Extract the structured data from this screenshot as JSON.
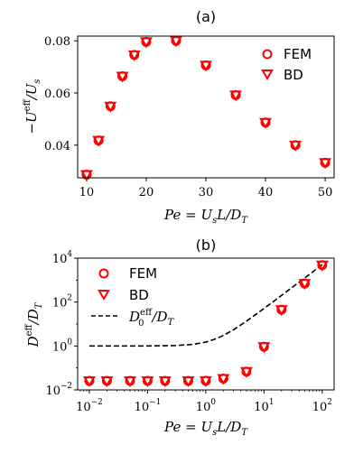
{
  "chart_data": [
    {
      "type": "scatter",
      "title": "(a)",
      "xlabel": "Pe = U_sL/D_T",
      "ylabel": "−U^eff/U_s",
      "xlim": [
        8.5,
        51.5
      ],
      "ylim": [
        0.0275,
        0.0818
      ],
      "xticks": [
        10,
        20,
        30,
        40,
        50
      ],
      "xtick_labels": [
        "10",
        "20",
        "30",
        "40",
        "50"
      ],
      "yticks": [
        0.04,
        0.06,
        0.08
      ],
      "ytick_labels": [
        "0.04",
        "0.06",
        "0.08"
      ],
      "legend_position": "top-right",
      "x": [
        10,
        12,
        14,
        16,
        18,
        20,
        25,
        30,
        35,
        40,
        45,
        50
      ],
      "series": [
        {
          "name": "FEM",
          "marker": "circle",
          "color": "#ff0000",
          "values": [
            0.0287,
            0.0418,
            0.0549,
            0.0664,
            0.0746,
            0.0796,
            0.08,
            0.0706,
            0.0592,
            0.0487,
            0.04,
            0.0333
          ]
        },
        {
          "name": "BD",
          "marker": "triangle-down",
          "color": "#ff0000",
          "values": [
            0.0287,
            0.0418,
            0.0549,
            0.0664,
            0.0746,
            0.0796,
            0.08,
            0.0706,
            0.0592,
            0.0487,
            0.04,
            0.0333
          ]
        }
      ]
    },
    {
      "type": "scatter",
      "title": "(b)",
      "xlabel": "Pe = U_sL/D_T",
      "ylabel": "D^eff/D_T",
      "xscale": "log",
      "yscale": "log",
      "xlim": [
        0.0063,
        160
      ],
      "ylim": [
        0.01,
        10000
      ],
      "xticks": [
        0.01,
        0.1,
        1,
        10,
        100
      ],
      "xtick_labels": [
        [
          "10",
          "−2"
        ],
        [
          "10",
          "−1"
        ],
        [
          "10",
          "0"
        ],
        [
          "10",
          "1"
        ],
        [
          "10",
          "2"
        ]
      ],
      "yticks": [
        0.01,
        1,
        100,
        10000
      ],
      "ytick_labels": [
        [
          "10",
          "−2"
        ],
        [
          "10",
          "0"
        ],
        [
          "10",
          "2"
        ],
        [
          "10",
          "4"
        ]
      ],
      "legend_position": "top-left",
      "x": [
        0.01,
        0.02,
        0.05,
        0.1,
        0.2,
        0.5,
        1,
        2,
        5,
        10,
        20,
        50,
        100
      ],
      "series": [
        {
          "name": "FEM",
          "marker": "circle",
          "color": "#ff0000",
          "values": [
            0.0258,
            0.0258,
            0.0258,
            0.0258,
            0.0258,
            0.0258,
            0.0262,
            0.0325,
            0.068,
            0.93,
            45,
            700,
            4800
          ]
        },
        {
          "name": "BD",
          "marker": "triangle-down",
          "color": "#ff0000",
          "values": [
            0.0258,
            0.0258,
            0.0258,
            0.0258,
            0.0258,
            0.0258,
            0.0262,
            0.0325,
            0.068,
            0.93,
            45,
            700,
            4800
          ]
        },
        {
          "name": "D_0^eff/D_T",
          "marker": "none",
          "line": "dashed",
          "color": "#000000",
          "formula": "1 + Pe^2/2",
          "x": [
            0.01,
            0.05,
            0.1,
            0.3,
            0.6,
            1,
            1.5,
            2,
            3,
            5,
            8,
            13,
            20,
            32,
            50,
            80,
            100
          ],
          "values": [
            1.0,
            1.0,
            1.005,
            1.045,
            1.18,
            1.5,
            2.125,
            3.0,
            5.5,
            13.5,
            33,
            85.5,
            201,
            513,
            1251,
            3201,
            5001
          ]
        }
      ]
    }
  ]
}
